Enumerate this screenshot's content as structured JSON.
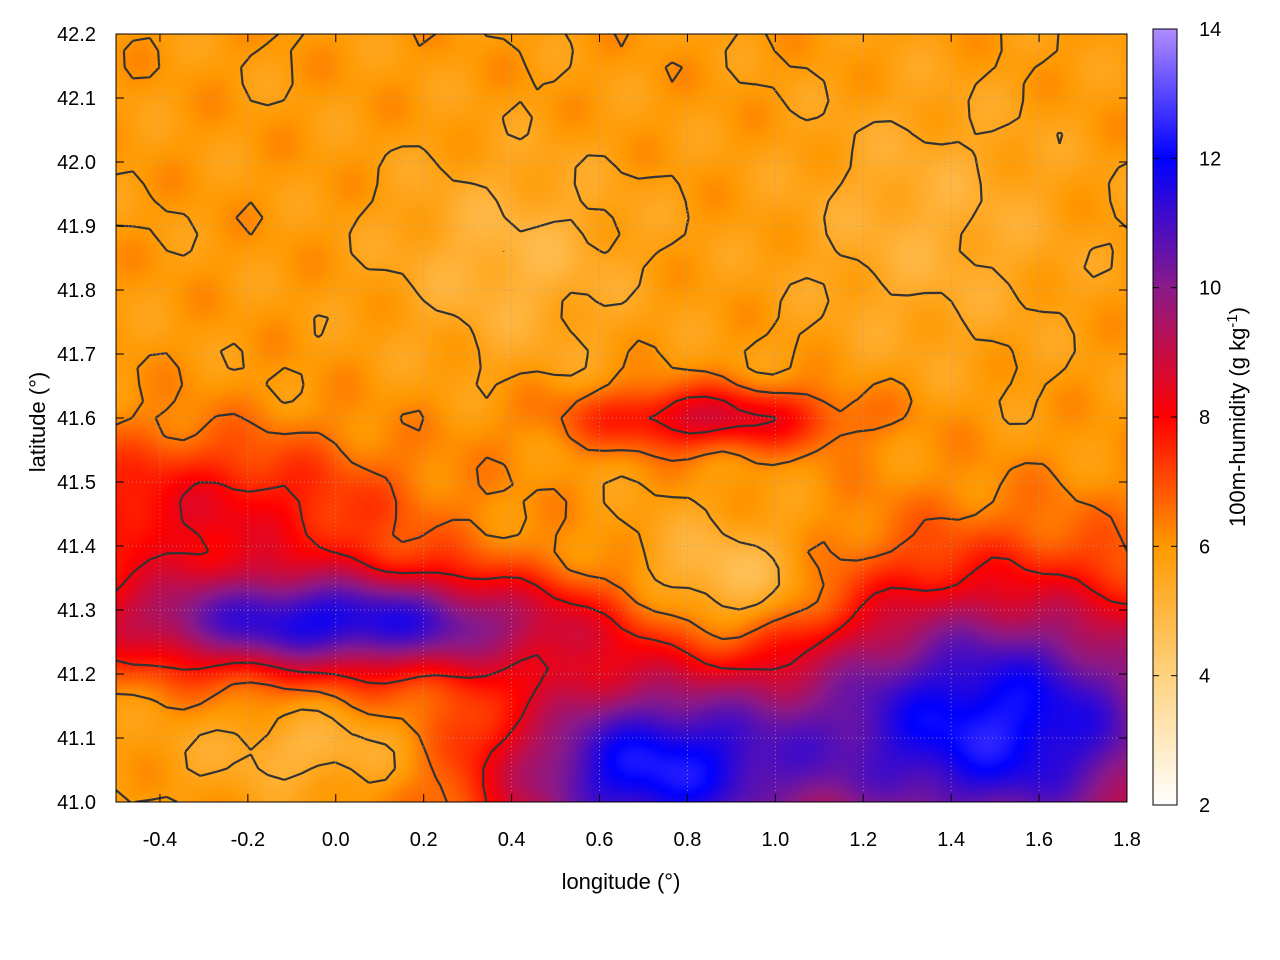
{
  "chart_data": {
    "type": "heatmap",
    "title": "",
    "xlabel": "longitude (°)",
    "ylabel": "latitude (°)",
    "xlim": [
      -0.5,
      1.8
    ],
    "ylim": [
      41.0,
      42.2
    ],
    "xticks": [
      -0.4,
      -0.2,
      0.0,
      0.2,
      0.4,
      0.6,
      0.8,
      1.0,
      1.2,
      1.4,
      1.6,
      1.8
    ],
    "xtick_labels": [
      "-0.4",
      "-0.2",
      "0.0",
      "0.2",
      "0.4",
      "0.6",
      "0.8",
      "1.0",
      "1.2",
      "1.4",
      "1.6",
      "1.8"
    ],
    "yticks": [
      41.0,
      41.1,
      41.2,
      41.3,
      41.4,
      41.5,
      41.6,
      41.7,
      41.8,
      41.9,
      42.0,
      42.1,
      42.2
    ],
    "ytick_labels": [
      "41.0",
      "41.1",
      "41.2",
      "41.3",
      "41.4",
      "41.5",
      "41.6",
      "41.7",
      "41.8",
      "41.9",
      "42.0",
      "42.1",
      "42.2"
    ],
    "grid": true,
    "colorbar": {
      "label_text": "100m-humidity (g kg",
      "label_exponent": "-1",
      "label_close": ")",
      "range": [
        2,
        14
      ],
      "ticks": [
        2,
        4,
        6,
        8,
        10,
        12,
        14
      ],
      "tick_labels": [
        "2",
        "4",
        "6",
        "8",
        "10",
        "12",
        "14"
      ],
      "palette_stops": [
        {
          "value": 2,
          "color": "#ffffff"
        },
        {
          "value": 4,
          "color": "#ffd27f"
        },
        {
          "value": 6,
          "color": "#ff9900"
        },
        {
          "value": 8,
          "color": "#ff0000"
        },
        {
          "value": 10,
          "color": "#8a1a8a"
        },
        {
          "value": 12,
          "color": "#0000ff"
        },
        {
          "value": 14,
          "color": "#b08cff"
        }
      ]
    },
    "contour_color": "#333333",
    "field_features": [
      {
        "name": "background-north",
        "value": 5.9
      },
      {
        "name": "humid-west-band",
        "lon": -0.3,
        "lat": 41.45,
        "value": 8.2,
        "slon": 0.45,
        "slat": 0.12
      },
      {
        "name": "humid-southwest-band",
        "lon": 0.0,
        "lat": 41.28,
        "value": 11.5,
        "slon": 0.55,
        "slat": 0.08
      },
      {
        "name": "humid-southeast",
        "lon": 1.5,
        "lat": 41.12,
        "value": 12.3,
        "slon": 0.5,
        "slat": 0.22
      },
      {
        "name": "humid-south-central",
        "lon": 0.7,
        "lat": 41.05,
        "value": 11.8,
        "slon": 0.35,
        "slat": 0.15
      },
      {
        "name": "dry-core-centre",
        "lon": 0.9,
        "lat": 41.33,
        "value": 4.0,
        "slon": 0.22,
        "slat": 0.1
      },
      {
        "name": "humid-arc-centre",
        "lon": 0.85,
        "lat": 41.6,
        "value": 8.6,
        "slon": 0.3,
        "slat": 0.05
      },
      {
        "name": "dry-southwest-coast",
        "lon": -0.05,
        "lat": 41.08,
        "value": 5.0,
        "slon": 0.25,
        "slat": 0.06
      },
      {
        "name": "dry-north-hills",
        "lon": 0.4,
        "lat": 41.85,
        "value": 5.0,
        "slon": 0.25,
        "slat": 0.15
      },
      {
        "name": "dry-northeast",
        "lon": 1.35,
        "lat": 41.9,
        "value": 5.2,
        "slon": 0.3,
        "slat": 0.2
      }
    ]
  }
}
